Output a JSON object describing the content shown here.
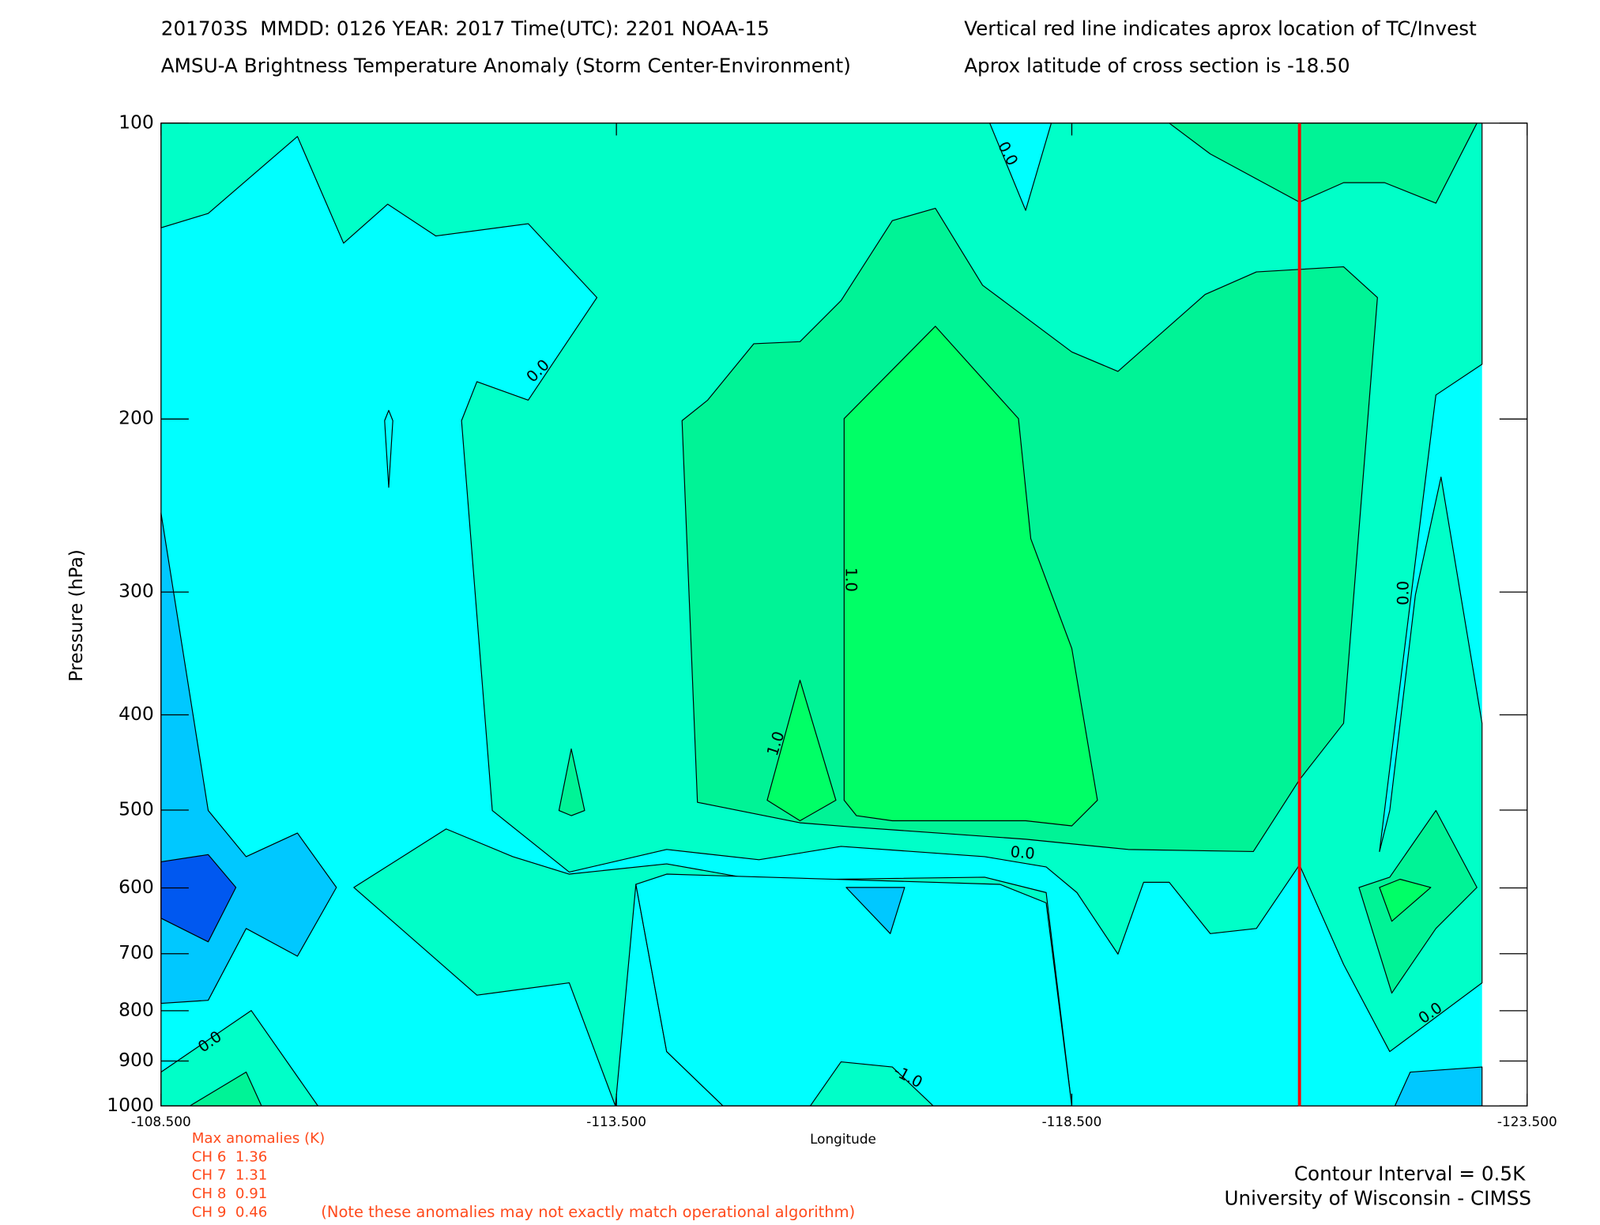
{
  "chart_data": {
    "type": "contour",
    "title": "201703S  MMDD: 0126 YEAR: 2017 Time(UTC): 2201 NOAA-15",
    "subtitle": "AMSU-A Brightness Temperature Anomaly (Storm Center-Environment)",
    "annotations": [
      "Vertical red line indicates aprox location of TC/Invest",
      "Aprox latitude of cross section is -18.50"
    ],
    "x_label": "Longitude",
    "y_label": "Pressure (hPa)",
    "xlim": [
      -108.5,
      -123.5
    ],
    "xticks": [
      {
        "value": -108.5,
        "label": "-108.500"
      },
      {
        "value": -113.5,
        "label": "-113.500"
      },
      {
        "value": -118.5,
        "label": "-118.500"
      },
      {
        "value": -123.5,
        "label": "-123.500"
      }
    ],
    "ylim": [
      100,
      1000
    ],
    "yticks": [
      100,
      200,
      300,
      400,
      500,
      600,
      700,
      800,
      900,
      1000
    ],
    "y_log": true,
    "y_inverted": true,
    "tc_longitude": -121,
    "tc_color": "#ff0000",
    "contour_labels": [
      "0.0",
      "0.0",
      "1.0",
      "1.0",
      "0.0",
      "0.0",
      "-1.0",
      "0.0",
      "0.0"
    ],
    "max_anomalies": {
      "title": "Max anomalies (K)",
      "rows": [
        "CH 6  1.36",
        "CH 7  1.31",
        "CH 8  0.91",
        "CH 9  0.46"
      ],
      "note": "(Note these anomalies may not exactly match operational algorithm)"
    },
    "contour_interval": "Contour Interval = 0.5K",
    "credit": "University of Wisconsin - CIMSS"
  }
}
